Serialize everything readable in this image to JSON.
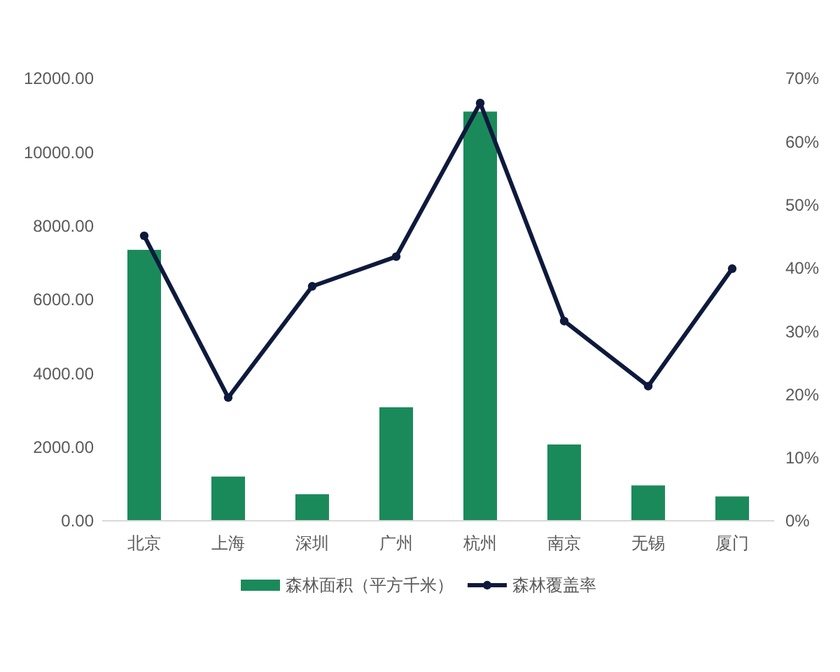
{
  "chart_data": {
    "type": "bar",
    "categories": [
      "北京",
      "上海",
      "深圳",
      "广州",
      "杭州",
      "南京",
      "无锡",
      "厦门"
    ],
    "series": [
      {
        "name": "森林面积（平方千米）",
        "color": "#1b8a5a",
        "values": [
          7350,
          1200,
          720,
          3080,
          11100,
          2070,
          960,
          660
        ]
      },
      {
        "name": "森林覆盖率",
        "type": "line",
        "axis": "y2",
        "color": "#0e1a3c",
        "values": [
          45.1,
          19.5,
          37.1,
          41.8,
          66.1,
          31.6,
          21.3,
          39.9
        ]
      }
    ],
    "ylim": [
      0,
      12000
    ],
    "yticks": [
      {
        "value": 0,
        "label": "0.00"
      },
      {
        "value": 2000,
        "label": "2000.00"
      },
      {
        "value": 4000,
        "label": "4000.00"
      },
      {
        "value": 6000,
        "label": "6000.00"
      },
      {
        "value": 8000,
        "label": "8000.00"
      },
      {
        "value": 10000,
        "label": "10000.00"
      },
      {
        "value": 12000,
        "label": "12000.00"
      }
    ],
    "y2lim": [
      0,
      70
    ],
    "y2ticks": [
      {
        "value": 0,
        "label": "0%"
      },
      {
        "value": 10,
        "label": "10%"
      },
      {
        "value": 20,
        "label": "20%"
      },
      {
        "value": 30,
        "label": "30%"
      },
      {
        "value": 40,
        "label": "40%"
      },
      {
        "value": 50,
        "label": "50%"
      },
      {
        "value": 60,
        "label": "60%"
      },
      {
        "value": 70,
        "label": "70%"
      }
    ],
    "legend": "bottom",
    "marker": "circle"
  }
}
